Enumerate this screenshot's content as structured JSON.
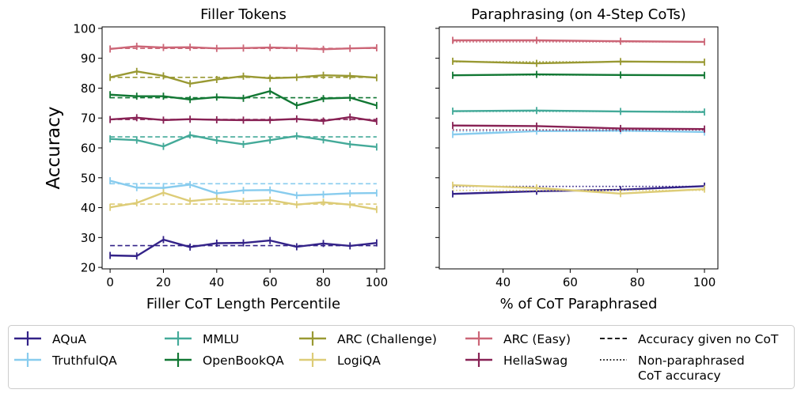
{
  "chart_data": [
    {
      "type": "line",
      "title": "Filler Tokens",
      "xlabel": "Filler CoT Length Percentile",
      "ylabel": "Accuracy",
      "xlim": [
        -3,
        103
      ],
      "ylim": [
        19.5,
        100.5
      ],
      "xticks": [
        0,
        20,
        40,
        60,
        80,
        100
      ],
      "yticks": [
        20,
        30,
        40,
        50,
        60,
        70,
        80,
        90,
        100
      ],
      "x": [
        0,
        10,
        20,
        30,
        40,
        50,
        60,
        70,
        80,
        90,
        100
      ],
      "series": [
        {
          "name": "AQuA",
          "color": "#332288",
          "values": [
            24.0,
            23.8,
            29.3,
            26.8,
            28.1,
            28.2,
            29.0,
            26.9,
            28.0,
            27.2,
            28.2
          ],
          "baseline": 27.3
        },
        {
          "name": "TruthfulQA",
          "color": "#88CCEE",
          "values": [
            49.0,
            46.7,
            46.6,
            47.7,
            44.8,
            45.8,
            45.9,
            44.1,
            44.4,
            44.8,
            44.9
          ],
          "baseline": 48.0
        },
        {
          "name": "MMLU",
          "color": "#44AA99",
          "values": [
            63.0,
            62.6,
            60.5,
            64.3,
            62.5,
            61.2,
            62.6,
            64.0,
            62.7,
            61.2,
            60.3
          ],
          "baseline": 63.7
        },
        {
          "name": "OpenBookQA",
          "color": "#117733",
          "values": [
            77.8,
            77.3,
            77.3,
            76.2,
            77.0,
            76.6,
            79.0,
            74.2,
            76.5,
            76.8,
            74.2
          ],
          "baseline": 76.8
        },
        {
          "name": "ARC (Challenge)",
          "color": "#999933",
          "values": [
            83.6,
            85.6,
            84.1,
            81.5,
            82.9,
            84.0,
            83.3,
            83.6,
            84.3,
            84.1,
            83.5
          ],
          "baseline": 83.6
        },
        {
          "name": "LogiQA",
          "color": "#DDCC77",
          "values": [
            40.1,
            41.6,
            45.0,
            42.2,
            43.0,
            42.1,
            42.5,
            41.0,
            41.8,
            41.0,
            39.4
          ],
          "baseline": 41.2
        },
        {
          "name": "ARC (Easy)",
          "color": "#CC6677",
          "values": [
            93.1,
            94.0,
            93.6,
            93.7,
            93.3,
            93.4,
            93.6,
            93.4,
            93.0,
            93.3,
            93.5
          ],
          "baseline": 93.3
        },
        {
          "name": "HellaSwag",
          "color": "#882255",
          "values": [
            69.5,
            70.1,
            69.3,
            69.6,
            69.4,
            69.3,
            69.3,
            69.7,
            69.0,
            70.3,
            68.9
          ],
          "baseline": 69.5
        }
      ]
    },
    {
      "type": "line",
      "title": "Paraphrasing (on 4-Step CoTs)",
      "xlabel": "% of CoT Paraphrased",
      "ylabel": "",
      "xlim": [
        21,
        104
      ],
      "ylim": [
        19.5,
        100.5
      ],
      "xticks": [
        40,
        60,
        80,
        100
      ],
      "yticks": [
        20,
        30,
        40,
        50,
        60,
        70,
        80,
        90,
        100
      ],
      "x": [
        25,
        50,
        75,
        100
      ],
      "series": [
        {
          "name": "AQuA",
          "color": "#332288",
          "values": [
            44.6,
            45.5,
            46.0,
            47.2
          ],
          "baseline": 47.1
        },
        {
          "name": "TruthfulQA",
          "color": "#88CCEE",
          "values": [
            64.5,
            65.6,
            65.8,
            65.3
          ],
          "baseline": 65.5
        },
        {
          "name": "MMLU",
          "color": "#44AA99",
          "values": [
            72.3,
            72.5,
            72.2,
            72.0
          ],
          "baseline": 72.2
        },
        {
          "name": "OpenBookQA",
          "color": "#117733",
          "values": [
            84.3,
            84.6,
            84.4,
            84.3
          ],
          "baseline": 84.4
        },
        {
          "name": "ARC (Challenge)",
          "color": "#999933",
          "values": [
            89.0,
            88.3,
            88.9,
            88.7
          ],
          "baseline": 88.8
        },
        {
          "name": "LogiQA",
          "color": "#DDCC77",
          "values": [
            47.5,
            46.6,
            44.7,
            46.2
          ],
          "baseline": 45.8
        },
        {
          "name": "ARC (Easy)",
          "color": "#CC6677",
          "values": [
            96.0,
            96.0,
            95.7,
            95.5
          ],
          "baseline": 95.5
        },
        {
          "name": "HellaSwag",
          "color": "#882255",
          "values": [
            67.5,
            67.3,
            66.5,
            66.3
          ],
          "baseline": 66.0
        }
      ]
    }
  ],
  "legend": {
    "items": [
      {
        "label": "AQuA",
        "color": "#332288",
        "kind": "errorbar"
      },
      {
        "label": "TruthfulQA",
        "color": "#88CCEE",
        "kind": "errorbar"
      },
      {
        "label": "MMLU",
        "color": "#44AA99",
        "kind": "errorbar"
      },
      {
        "label": "OpenBookQA",
        "color": "#117733",
        "kind": "errorbar"
      },
      {
        "label": "ARC (Challenge)",
        "color": "#999933",
        "kind": "errorbar"
      },
      {
        "label": "LogiQA",
        "color": "#DDCC77",
        "kind": "errorbar"
      },
      {
        "label": "ARC (Easy)",
        "color": "#CC6677",
        "kind": "errorbar"
      },
      {
        "label": "HellaSwag",
        "color": "#882255",
        "kind": "errorbar"
      },
      {
        "label": "Accuracy given no CoT",
        "color": "#000000",
        "kind": "dashed"
      },
      {
        "label": "Non-paraphrased\nCoT accuracy",
        "color": "#000000",
        "kind": "dotted"
      }
    ]
  }
}
